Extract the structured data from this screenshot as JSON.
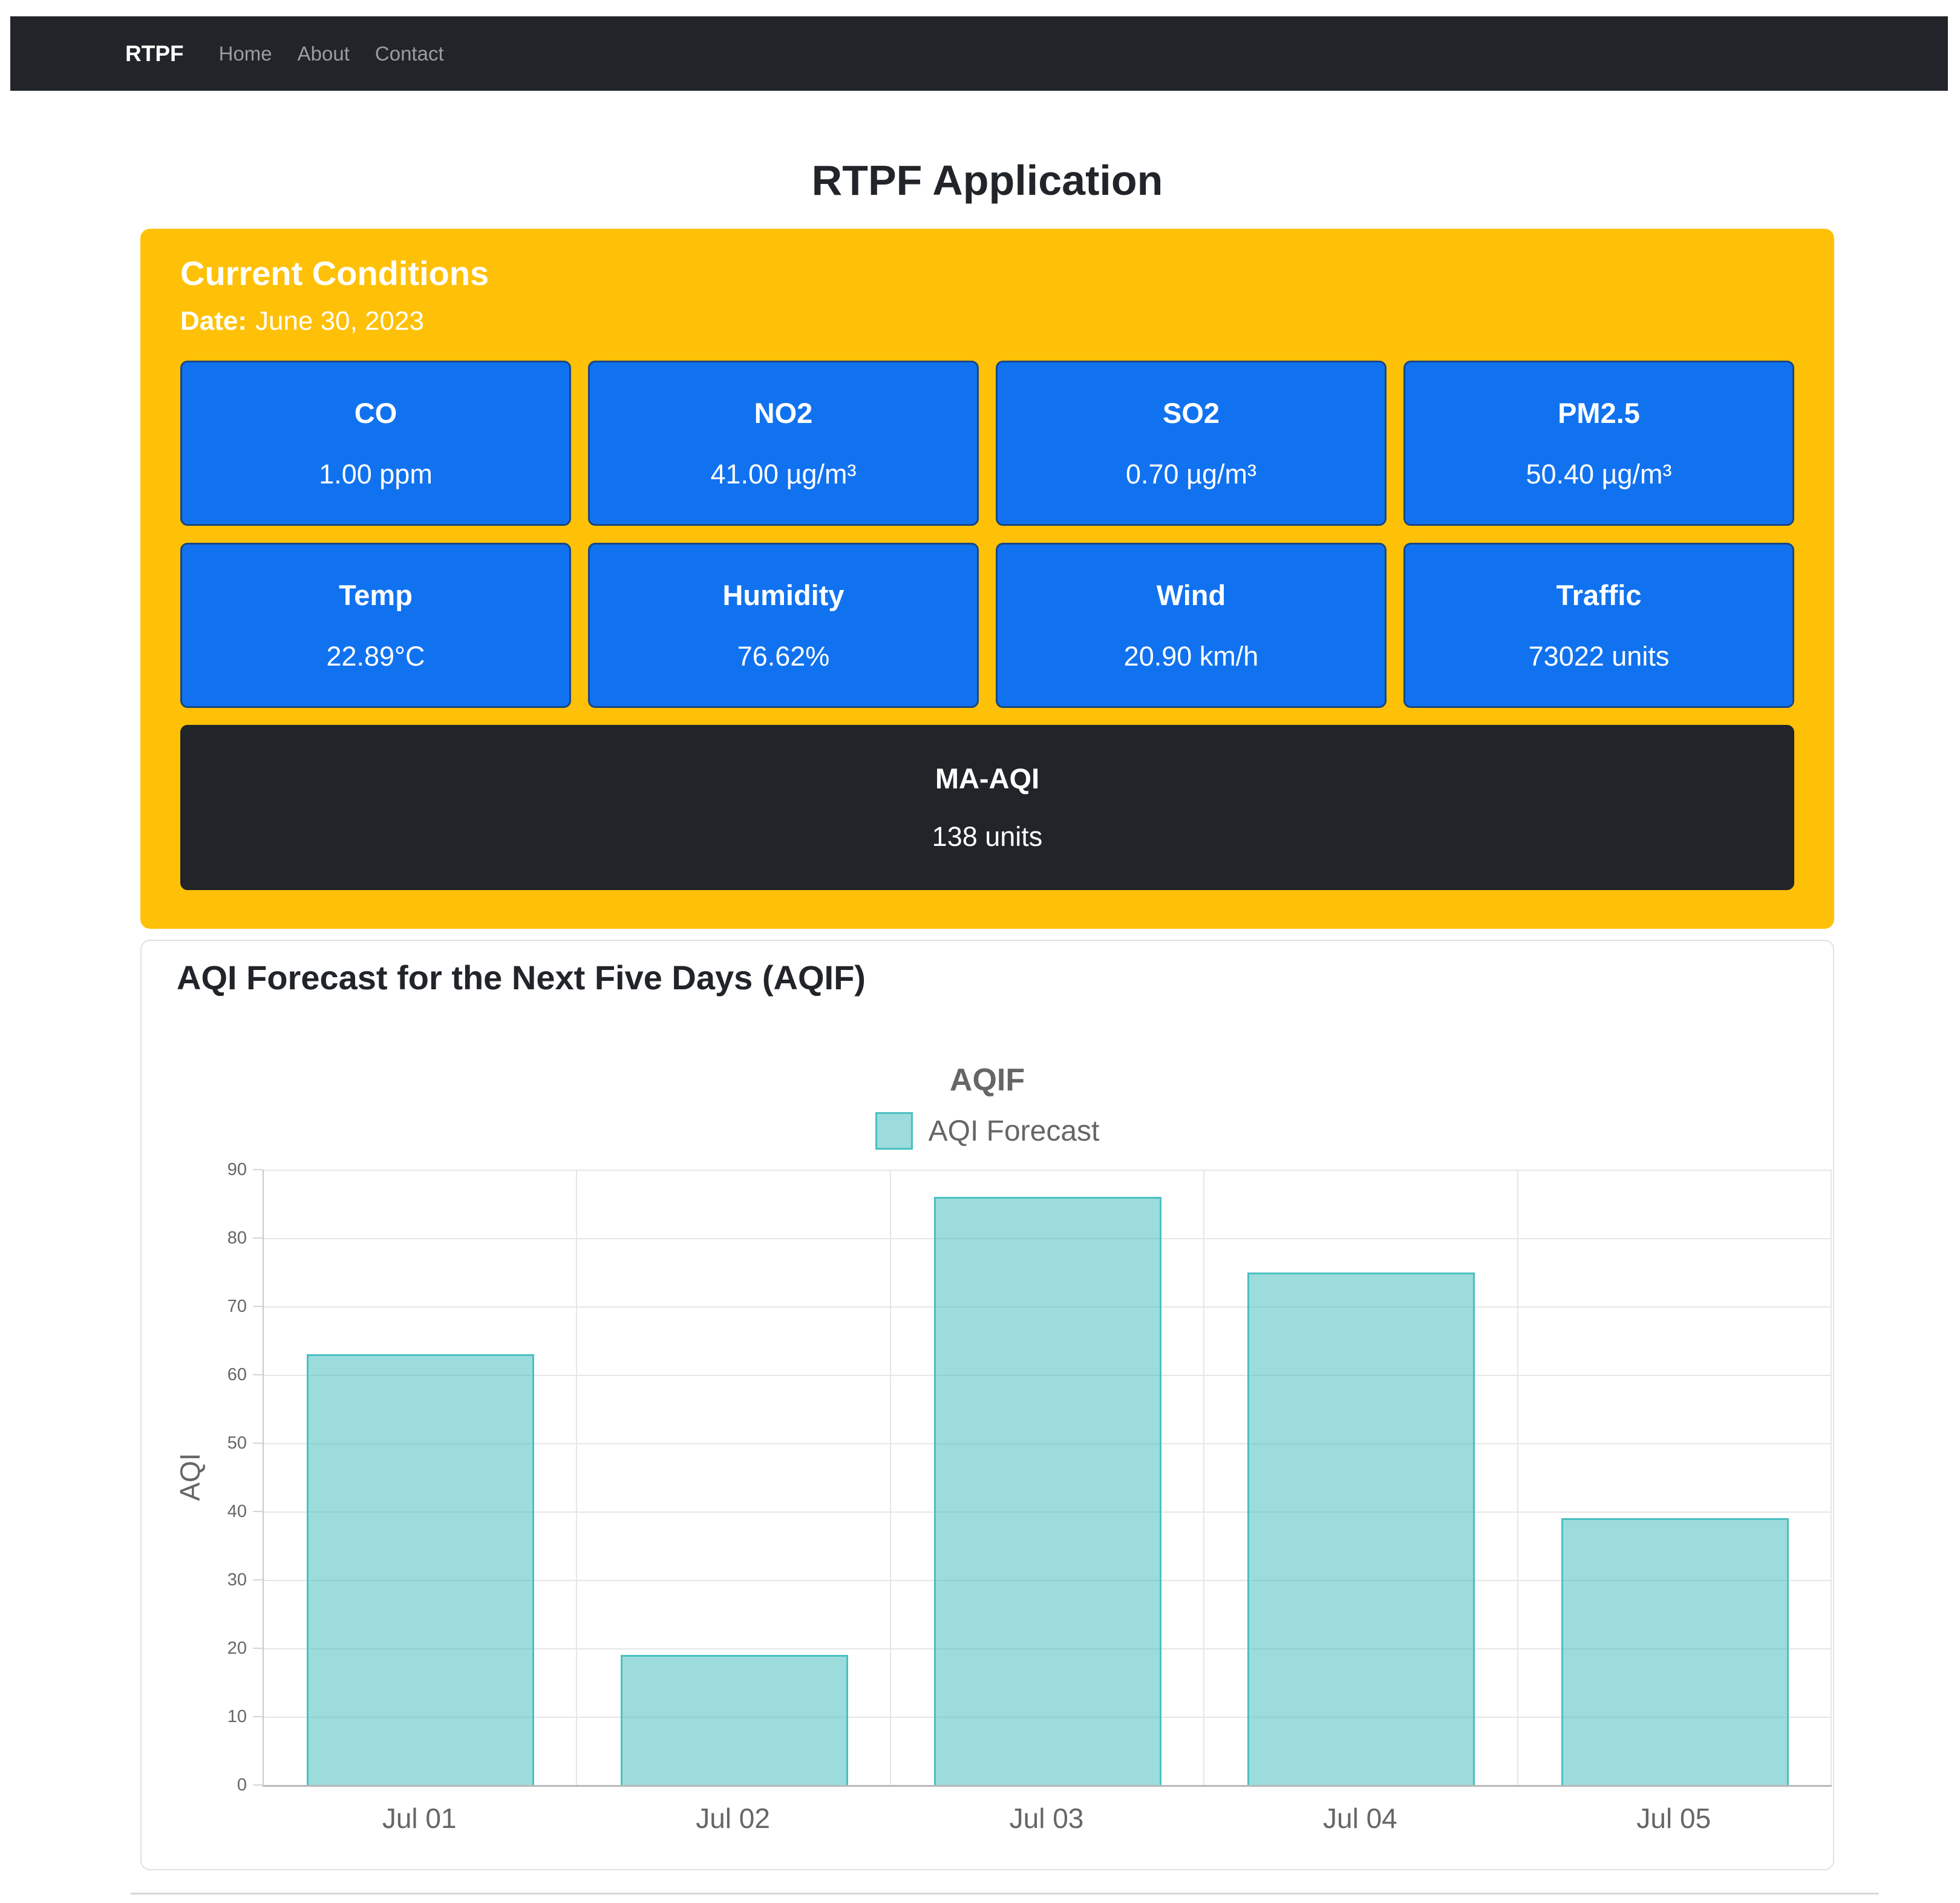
{
  "navbar": {
    "brand": "RTPF",
    "links": [
      {
        "label": "Home"
      },
      {
        "label": "About"
      },
      {
        "label": "Contact"
      }
    ]
  },
  "page_title": "RTPF Application",
  "current_conditions": {
    "title": "Current Conditions",
    "date_label": "Date:",
    "date_value": "June 30, 2023",
    "metrics": [
      {
        "label": "CO",
        "value": "1.00 ppm"
      },
      {
        "label": "NO2",
        "value": "41.00 µg/m³"
      },
      {
        "label": "SO2",
        "value": "0.70 µg/m³"
      },
      {
        "label": "PM2.5",
        "value": "50.40 µg/m³"
      },
      {
        "label": "Temp",
        "value": "22.89°C"
      },
      {
        "label": "Humidity",
        "value": "76.62%"
      },
      {
        "label": "Wind",
        "value": "20.90 km/h"
      },
      {
        "label": "Traffic",
        "value": "73022 units"
      }
    ],
    "ma_aqi": {
      "label": "MA-AQI",
      "value": "138 units"
    }
  },
  "forecast_section": {
    "heading": "AQI Forecast for the Next Five Days (AQIF)"
  },
  "chart_data": {
    "type": "bar",
    "title": "AQIF",
    "legend": [
      {
        "label": "AQI Forecast"
      }
    ],
    "legend_position": "top",
    "categories": [
      "Jul 01",
      "Jul 02",
      "Jul 03",
      "Jul 04",
      "Jul 05"
    ],
    "values": [
      63,
      19,
      86,
      75,
      39
    ],
    "xlabel": "",
    "ylabel": "AQI",
    "ylim": [
      0,
      90
    ],
    "ytick_step": 10,
    "grid": true
  },
  "colors": {
    "navbar_bg": "#212529",
    "conditions_card": "#FFC107",
    "metric_tile": "#1172F0",
    "dark_tile": "#212529",
    "bar_fill": "rgba(75,192,192,0.55)",
    "bar_border": "#4BC0C0",
    "chart_text": "#666666",
    "grid_line": "#E6E6E6"
  }
}
